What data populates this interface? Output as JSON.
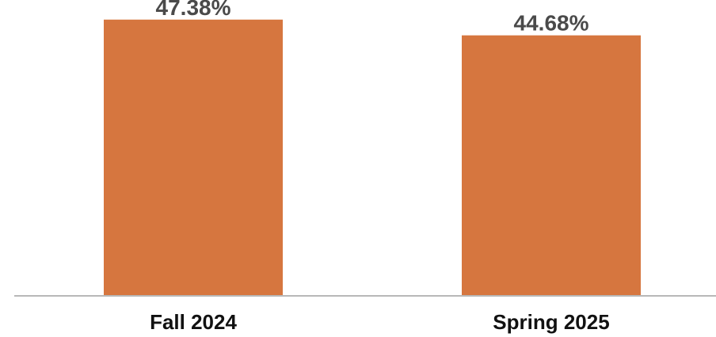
{
  "chart_data": {
    "type": "bar",
    "categories": [
      "Fall 2024",
      "Spring 2025"
    ],
    "values": [
      47.38,
      44.68
    ],
    "value_labels": [
      "47.38%",
      "44.68%"
    ],
    "title": "",
    "xlabel": "",
    "ylabel": "",
    "ylim": [
      0,
      48.3
    ],
    "grid": false,
    "legend": "none",
    "bar_color": "#d6763f",
    "axis_color": "#b8b8b8"
  }
}
